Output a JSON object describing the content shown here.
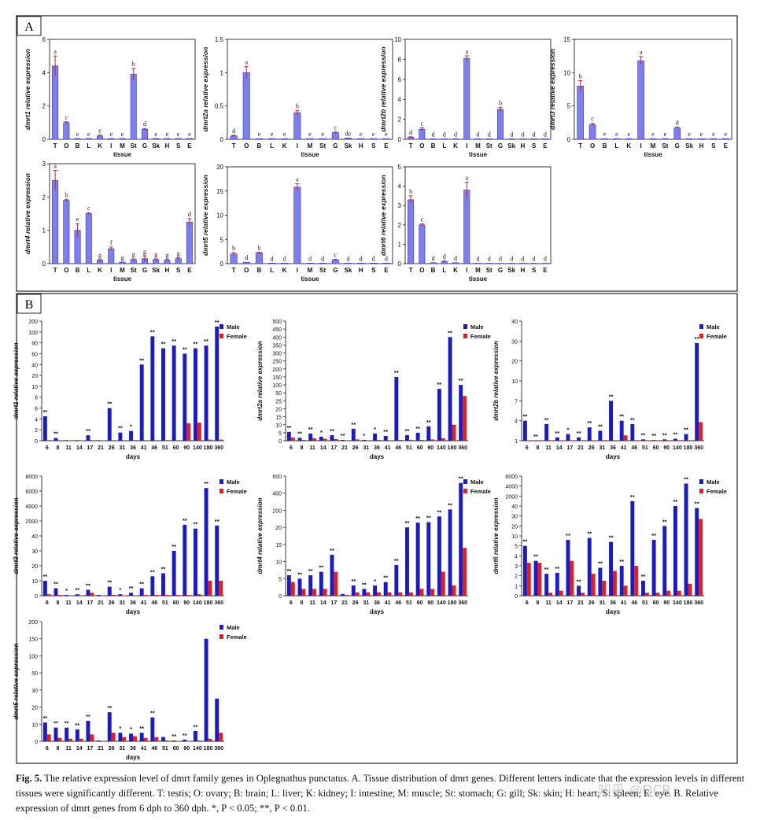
{
  "panel_labels": {
    "a": "A",
    "b": "B"
  },
  "caption": {
    "fig_label": "Fig. 5.",
    "text": "The relative expression level of dmrt family genes in Oplegnathus punctatus. A. Tissue distribution of dmrt genes. Different letters indicate that the expression levels in different tissues were significantly different. T: testis; O: ovary; B: brain; L: liver; K: kidney; I: intestine; M: muscle; St: stomach; G: gill; Sk: skin; H: heart; S: spleen; E: eye. B. Relative expression of dmrt genes from 6 dph to 360 dph. *, P < 0.05; **, P < 0.01."
  },
  "watermark": "知乎 @DCR",
  "colors": {
    "bar_a": "#7d7ff0",
    "male": "#1a1ac8",
    "female": "#e02020",
    "err": "#d02020",
    "frame": "#222222"
  },
  "chart_data": [
    {
      "id": "dmrt1_tissue",
      "type": "bar",
      "title": "",
      "ylabel": "dmrt1 relative expression",
      "xlabel": "tissue",
      "categories": [
        "T",
        "O",
        "B",
        "L",
        "K",
        "I",
        "M",
        "St",
        "G",
        "Sk",
        "H",
        "S",
        "E"
      ],
      "values": [
        4.4,
        1.0,
        0.05,
        0.05,
        0.2,
        0.05,
        0.05,
        3.9,
        0.6,
        0.05,
        0.05,
        0.05,
        0.05
      ],
      "errors": [
        0.6,
        0.05,
        0,
        0,
        0.05,
        0,
        0,
        0.35,
        0.05,
        0,
        0,
        0,
        0
      ],
      "labels": [
        "a",
        "c",
        "e",
        "e",
        "e",
        "e",
        "e",
        "b",
        "d",
        "e",
        "e",
        "e",
        "e"
      ],
      "ylim": [
        0,
        6
      ],
      "yticks": [
        0,
        2,
        4,
        6
      ]
    },
    {
      "id": "dmrt2a_tissue",
      "type": "bar",
      "ylabel": "dmrt2a relative expression",
      "xlabel": "tissue",
      "categories": [
        "T",
        "O",
        "B",
        "L",
        "K",
        "I",
        "M",
        "St",
        "G",
        "Sk",
        "H",
        "S",
        "E"
      ],
      "values": [
        0.05,
        1.0,
        0.01,
        0.01,
        0.01,
        0.4,
        0.01,
        0.01,
        0.1,
        0.02,
        0.01,
        0.01,
        0.01
      ],
      "errors": [
        0.01,
        0.09,
        0,
        0,
        0,
        0.03,
        0,
        0,
        0.01,
        0,
        0,
        0,
        0
      ],
      "labels": [
        "d",
        "a",
        "e",
        "e",
        "e",
        "b",
        "e",
        "e",
        "c",
        "de",
        "e",
        "e",
        "e"
      ],
      "ylim": [
        0,
        1.5
      ],
      "yticks": [
        0.0,
        0.5,
        1.0,
        1.5
      ]
    },
    {
      "id": "dmrt2b_tissue",
      "type": "bar",
      "ylabel": "dmrt2b relative expression",
      "xlabel": "tissue",
      "categories": [
        "T",
        "O",
        "B",
        "L",
        "K",
        "I",
        "M",
        "St",
        "G",
        "Sk",
        "H",
        "S",
        "E"
      ],
      "values": [
        0.2,
        1.0,
        0.05,
        0.05,
        0.05,
        8.1,
        0.05,
        0.05,
        3.0,
        0.05,
        0.05,
        0.05,
        0.05
      ],
      "errors": [
        0.05,
        0.15,
        0,
        0,
        0,
        0.25,
        0,
        0,
        0.2,
        0,
        0,
        0,
        0
      ],
      "labels": [
        "d",
        "c",
        "d",
        "d",
        "d",
        "a",
        "d",
        "d",
        "b",
        "d",
        "d",
        "d",
        "d"
      ],
      "ylim": [
        0,
        10
      ],
      "yticks": [
        0,
        2,
        4,
        6,
        8,
        10
      ]
    },
    {
      "id": "dmrt3_tissue",
      "type": "bar",
      "ylabel": "dmrt3 relative expression",
      "xlabel": "tissue",
      "categories": [
        "T",
        "O",
        "B",
        "L",
        "K",
        "I",
        "M",
        "St",
        "G",
        "Sk",
        "H",
        "S",
        "E"
      ],
      "values": [
        8.0,
        2.2,
        0.1,
        0.1,
        0.1,
        11.8,
        0.1,
        0.1,
        1.7,
        0.1,
        0.1,
        0.1,
        0.1
      ],
      "errors": [
        0.8,
        0.2,
        0,
        0,
        0,
        0.6,
        0,
        0,
        0.15,
        0,
        0,
        0,
        0
      ],
      "labels": [
        "b",
        "c",
        "e",
        "e",
        "e",
        "a",
        "e",
        "e",
        "d",
        "e",
        "e",
        "e",
        "e"
      ],
      "ylim": [
        0,
        15
      ],
      "yticks": [
        0,
        5,
        10,
        15
      ]
    },
    {
      "id": "dmrt4_tissue",
      "type": "bar",
      "ylabel": "dmrt4 relative expression",
      "xlabel": "tissue",
      "categories": [
        "T",
        "O",
        "B",
        "L",
        "K",
        "I",
        "M",
        "St",
        "G",
        "Sk",
        "H",
        "S",
        "E"
      ],
      "values": [
        2.5,
        1.9,
        1.0,
        1.5,
        0.1,
        0.45,
        0.05,
        0.12,
        0.15,
        0.12,
        0.1,
        0.15,
        1.25
      ],
      "errors": [
        0.3,
        0.03,
        0.2,
        0.03,
        0.02,
        0.05,
        0,
        0.02,
        0.08,
        0.02,
        0.02,
        0.03,
        0.1
      ],
      "labels": [
        "a",
        "b",
        "e",
        "c",
        "g",
        "f",
        "g",
        "g",
        "g",
        "g",
        "g",
        "g",
        "d"
      ],
      "ylim": [
        0,
        3
      ],
      "yticks": [
        0,
        1,
        2,
        3
      ]
    },
    {
      "id": "dmrt5_tissue",
      "type": "bar",
      "ylabel": "dmrt5 relative expression",
      "xlabel": "tissue",
      "categories": [
        "T",
        "O",
        "B",
        "L",
        "K",
        "I",
        "M",
        "St",
        "G",
        "Sk",
        "H",
        "S",
        "E"
      ],
      "values": [
        2.0,
        0.3,
        2.2,
        0.1,
        0.1,
        15.8,
        0.1,
        0.1,
        0.8,
        0.1,
        0.1,
        0.1,
        0.1
      ],
      "errors": [
        0.3,
        0,
        0.15,
        0,
        0,
        0.7,
        0,
        0,
        0.1,
        0,
        0,
        0,
        0
      ],
      "labels": [
        "b",
        "d",
        "b",
        "d",
        "d",
        "a",
        "d",
        "d",
        "c",
        "d",
        "d",
        "d",
        "d"
      ],
      "ylim": [
        0,
        20
      ],
      "yticks": [
        0,
        5,
        10,
        15,
        20
      ]
    },
    {
      "id": "dmrt6_tissue",
      "type": "bar",
      "ylabel": "dmrt6 relative expression",
      "xlabel": "tissue",
      "categories": [
        "T",
        "O",
        "B",
        "L",
        "K",
        "I",
        "M",
        "St",
        "G",
        "Sk",
        "H",
        "S",
        "E"
      ],
      "values": [
        3.3,
        2.0,
        0.05,
        0.1,
        0.05,
        3.8,
        0.02,
        0.02,
        0.02,
        0.02,
        0.02,
        0.02,
        0.02
      ],
      "errors": [
        0.2,
        0.05,
        0,
        0.05,
        0,
        0.4,
        0,
        0,
        0,
        0,
        0,
        0,
        0
      ],
      "labels": [
        "b",
        "c",
        "d",
        "d",
        "d",
        "a",
        "d",
        "d",
        "d",
        "d",
        "d",
        "d",
        "d"
      ],
      "ylim": [
        0,
        5
      ],
      "yticks": [
        0,
        1,
        2,
        3,
        4,
        5
      ]
    },
    {
      "id": "dmrt1_days",
      "type": "bar",
      "ylabel": "dmrt1 relative expression",
      "xlabel": "days",
      "categories": [
        "6",
        "8",
        "11",
        "14",
        "17",
        "21",
        "26",
        "31",
        "36",
        "41",
        "46",
        "51",
        "60",
        "90",
        "140",
        "180",
        "360"
      ],
      "legend": [
        "Male",
        "Female"
      ],
      "series": [
        {
          "name": "Male",
          "values": [
            4.5,
            0.5,
            0.1,
            0.1,
            1.0,
            0.1,
            6,
            1.5,
            1.8,
            40,
            92,
            70,
            75,
            60,
            70,
            75,
            150
          ]
        },
        {
          "name": "Female",
          "values": [
            0.1,
            0.1,
            0.05,
            0.05,
            0.1,
            0.05,
            0.1,
            0.1,
            0.1,
            0.1,
            0.1,
            0.1,
            0.1,
            3.2,
            3.3,
            0.2,
            0.2
          ]
        }
      ],
      "sig": [
        "**",
        "**",
        "",
        "",
        "**",
        "",
        "**",
        "**",
        "*",
        "**",
        "**",
        "**",
        "**",
        "**",
        "**",
        "**",
        "**"
      ],
      "yticks": [
        0,
        2,
        4,
        6,
        8,
        10,
        20,
        40,
        60,
        80,
        100,
        200
      ],
      "ylim": [
        0,
        200
      ]
    },
    {
      "id": "dmrt2a_days",
      "type": "bar",
      "ylabel": "dmrt2a relative expression",
      "xlabel": "days",
      "categories": [
        "6",
        "8",
        "11",
        "14",
        "17",
        "21",
        "26",
        "31",
        "36",
        "41",
        "46",
        "51",
        "60",
        "90",
        "140",
        "180",
        "360"
      ],
      "legend": [
        "Male",
        "Female"
      ],
      "series": [
        {
          "name": "Male",
          "values": [
            5.5,
            1.8,
            4.5,
            2.5,
            3.5,
            0.5,
            7.5,
            0.5,
            4.5,
            3,
            150,
            3.5,
            5,
            9,
            75,
            400,
            100
          ]
        },
        {
          "name": "Female",
          "values": [
            2,
            0.5,
            1.5,
            1.2,
            1.0,
            0.3,
            0.8,
            0.3,
            0.5,
            0.3,
            0.5,
            0.5,
            0.5,
            0.8,
            1.5,
            10,
            40
          ]
        }
      ],
      "sig": [
        "**",
        "**",
        "**",
        "*",
        "**",
        "**",
        "**",
        "*",
        "*",
        "**",
        "**",
        "**",
        "**",
        "**",
        "**",
        "**",
        "**"
      ],
      "yticks": [
        0,
        5,
        10,
        15,
        20,
        25,
        50,
        100,
        150,
        200,
        250,
        300,
        350,
        400,
        450,
        500
      ],
      "ylim": [
        0,
        500
      ]
    },
    {
      "id": "dmrt2b_days",
      "type": "bar",
      "ylabel": "dmrt2b relative expression",
      "xlabel": "days",
      "categories": [
        "6",
        "8",
        "11",
        "14",
        "17",
        "21",
        "26",
        "31",
        "36",
        "41",
        "46",
        "51",
        "60",
        "90",
        "140",
        "180",
        "360"
      ],
      "legend": [
        "Male",
        "Female"
      ],
      "series": [
        {
          "name": "Male",
          "values": [
            4,
            1,
            3.5,
            1.5,
            2,
            1.5,
            3,
            2.5,
            7,
            4,
            3.5,
            1.2,
            1.1,
            1.2,
            1.3,
            2,
            29
          ]
        },
        {
          "name": "Female",
          "values": [
            0.5,
            0.3,
            0.6,
            1,
            0.5,
            0.5,
            0.6,
            0.5,
            0.5,
            1.8,
            1,
            0.3,
            0.2,
            0.3,
            0.3,
            0.4,
            3.8
          ]
        }
      ],
      "sig": [
        "**",
        "**",
        "**",
        "**",
        "*",
        "**",
        "**",
        "**",
        "**",
        "**",
        "**",
        "**",
        "**",
        "**",
        "**",
        "**",
        "**"
      ],
      "yticks": [
        1,
        4,
        7,
        10,
        20,
        30,
        40
      ],
      "ylim": [
        0,
        40
      ]
    },
    {
      "id": "dmrt3_days",
      "type": "bar",
      "ylabel": "dmrt3 relative expression",
      "xlabel": "days",
      "categories": [
        "6",
        "8",
        "11",
        "14",
        "17",
        "21",
        "26",
        "31",
        "36",
        "41",
        "46",
        "51",
        "60",
        "90",
        "140",
        "180",
        "360"
      ],
      "legend": [
        "Male",
        "Female"
      ],
      "series": [
        {
          "name": "Male",
          "values": [
            10,
            5,
            0.5,
            1,
            4,
            0.5,
            6,
            1,
            2,
            5,
            13,
            15,
            30,
            1500,
            1000,
            6400,
            1400
          ]
        },
        {
          "name": "Female",
          "values": [
            1,
            0.5,
            0.2,
            0.2,
            2,
            0.1,
            0.5,
            0.2,
            0.2,
            0.5,
            0.5,
            0.5,
            0.5,
            0.5,
            1,
            10,
            10
          ]
        }
      ],
      "sig": [
        "**",
        "**",
        "*",
        "**",
        "**",
        "",
        "**",
        "*",
        "**",
        "**",
        "**",
        "**",
        "**",
        "**",
        "**",
        "**",
        "**"
      ],
      "yticks": [
        0,
        10,
        20,
        30,
        40,
        2000,
        4000,
        6000,
        8000
      ],
      "ylim": [
        0,
        8000
      ]
    },
    {
      "id": "dmrt4_days",
      "type": "bar",
      "ylabel": "dmrt4 relative expression",
      "xlabel": "days",
      "categories": [
        "6",
        "8",
        "11",
        "14",
        "17",
        "21",
        "26",
        "31",
        "36",
        "41",
        "46",
        "51",
        "60",
        "90",
        "140",
        "180",
        "360"
      ],
      "legend": [
        "Male",
        "Female"
      ],
      "series": [
        {
          "name": "Male",
          "values": [
            6,
            5,
            6,
            7,
            12,
            0.5,
            3,
            2,
            3,
            4,
            9,
            20,
            70,
            75,
            135,
            210,
            520
          ]
        },
        {
          "name": "Female",
          "values": [
            4,
            2,
            2,
            2,
            7,
            0.2,
            1,
            1,
            1,
            1,
            1,
            1,
            2,
            2,
            7,
            3,
            14
          ]
        }
      ],
      "sig": [
        "**",
        "**",
        "**",
        "**",
        "**",
        "",
        "**",
        "**",
        "*",
        "**",
        "**",
        "**",
        "**",
        "**",
        "**",
        "**",
        "**"
      ],
      "yticks": [
        0,
        5,
        10,
        15,
        20,
        200,
        400,
        600
      ],
      "ylim": [
        0,
        600
      ]
    },
    {
      "id": "dmrt6_days",
      "type": "bar",
      "ylabel": "dmrt6 relative expression",
      "xlabel": "days",
      "categories": [
        "6",
        "8",
        "11",
        "14",
        "17",
        "21",
        "26",
        "31",
        "36",
        "41",
        "46",
        "51",
        "60",
        "90",
        "140",
        "180",
        "360"
      ],
      "legend": [
        "Male",
        "Female"
      ],
      "series": [
        {
          "name": "Male",
          "values": [
            5,
            3.5,
            2.2,
            2.3,
            8,
            1,
            9,
            2.8,
            7,
            3,
            1000,
            1.5,
            8,
            20,
            40,
            4500,
            38
          ]
        },
        {
          "name": "Female",
          "values": [
            3.3,
            3.3,
            0.3,
            0.5,
            3.5,
            0.3,
            2.2,
            1.5,
            2.5,
            1,
            3,
            0.3,
            0.3,
            0.5,
            0.5,
            1.2,
            27
          ]
        }
      ],
      "sig": [
        "**",
        "**",
        "**",
        "**",
        "**",
        "**",
        "**",
        "**",
        "**",
        "**",
        "**",
        "**",
        "**",
        "**",
        "**",
        "**",
        "**"
      ],
      "yticks": [
        0,
        1,
        2,
        3,
        4,
        5,
        10,
        20,
        30,
        40,
        2000,
        4000,
        6000
      ],
      "ylim": [
        0,
        6000
      ]
    },
    {
      "id": "dmrt5_days",
      "type": "bar",
      "ylabel": "dmrt5 relative expression",
      "xlabel": "days",
      "categories": [
        "6",
        "8",
        "11",
        "14",
        "17",
        "21",
        "26",
        "31",
        "36",
        "41",
        "46",
        "51",
        "60",
        "90",
        "140",
        "180",
        "360"
      ],
      "legend": [
        "Male",
        "Female"
      ],
      "series": [
        {
          "name": "Male",
          "values": [
            11,
            8,
            8,
            7,
            12,
            0.5,
            17,
            5,
            4.5,
            5,
            14,
            2.5,
            0.5,
            1,
            6,
            150,
            25
          ]
        },
        {
          "name": "Female",
          "values": [
            4,
            2,
            1.5,
            1.5,
            4,
            0.2,
            5,
            2.5,
            3,
            2,
            2.5,
            0.5,
            0.2,
            0.2,
            0.5,
            1.5,
            5
          ]
        }
      ],
      "sig": [
        "**",
        "**",
        "**",
        "**",
        "**",
        "",
        "**",
        "*",
        "*",
        "**",
        "**",
        "",
        "**",
        "**",
        "**",
        "",
        ""
      ],
      "yticks": [
        0,
        10,
        20,
        30,
        50,
        100,
        150,
        200
      ],
      "ylim": [
        0,
        200
      ]
    }
  ]
}
